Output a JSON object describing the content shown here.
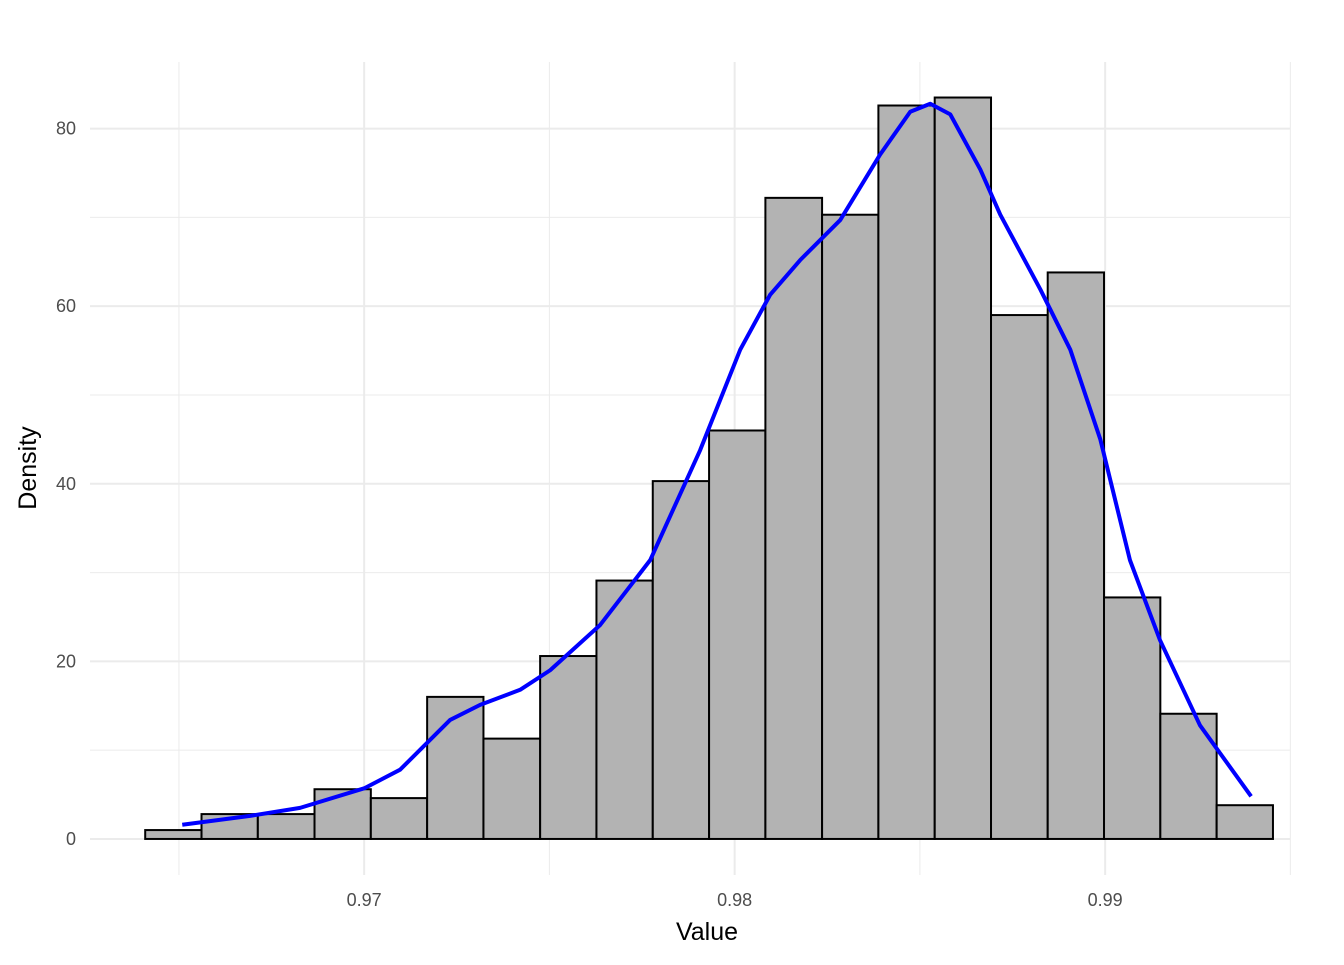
{
  "chart_data": {
    "type": "histogram",
    "xlabel": "Value",
    "ylabel": "Density",
    "bins": [
      0.96409,
      0.96561,
      0.96713,
      0.96866,
      0.97018,
      0.9717,
      0.97322,
      0.97475,
      0.97627,
      0.97779,
      0.97931,
      0.98083,
      0.98236,
      0.98388,
      0.9854,
      0.98692,
      0.98845,
      0.98997,
      0.99149,
      0.99301,
      0.99453
    ],
    "values": [
      1.0,
      2.8,
      2.8,
      5.6,
      4.6,
      16.0,
      11.3,
      20.6,
      29.1,
      40.3,
      46.0,
      72.2,
      70.3,
      82.6,
      83.5,
      59.0,
      63.8,
      27.2,
      14.1,
      3.8
    ],
    "color": "#b3b3b3",
    "edgecolor": "#000000",
    "density": {
      "color": "#0000ff",
      "x": [
        0.96509,
        0.96692,
        0.96827,
        0.97,
        0.97097,
        0.97232,
        0.97313,
        0.97421,
        0.97502,
        0.97637,
        0.97772,
        0.97907,
        0.98015,
        0.98096,
        0.98177,
        0.98285,
        0.98393,
        0.98474,
        0.98528,
        0.98582,
        0.98663,
        0.98717,
        0.98825,
        0.98906,
        0.98987,
        0.99067,
        0.99148,
        0.99256,
        0.99394
      ],
      "y": [
        1.6,
        2.6,
        3.5,
        5.7,
        7.8,
        13.4,
        15.1,
        16.8,
        19.0,
        24.1,
        31.4,
        43.8,
        55.1,
        61.3,
        65.2,
        69.7,
        77.1,
        81.9,
        82.8,
        81.6,
        75.4,
        70.3,
        61.9,
        55.1,
        45.0,
        31.4,
        22.4,
        12.8,
        4.8
      ]
    },
    "xlim": [
      0.9626,
      0.99499
    ],
    "ylim": [
      -4.06,
      87.5
    ],
    "xticks": [
      0.97,
      0.98,
      0.99
    ],
    "yticks": [
      0,
      20,
      40,
      60,
      80
    ],
    "x_minor_grid": [
      0.965,
      0.975,
      0.985,
      0.995
    ],
    "y_minor_grid": [
      10,
      30,
      50,
      70
    ],
    "grid": true
  }
}
